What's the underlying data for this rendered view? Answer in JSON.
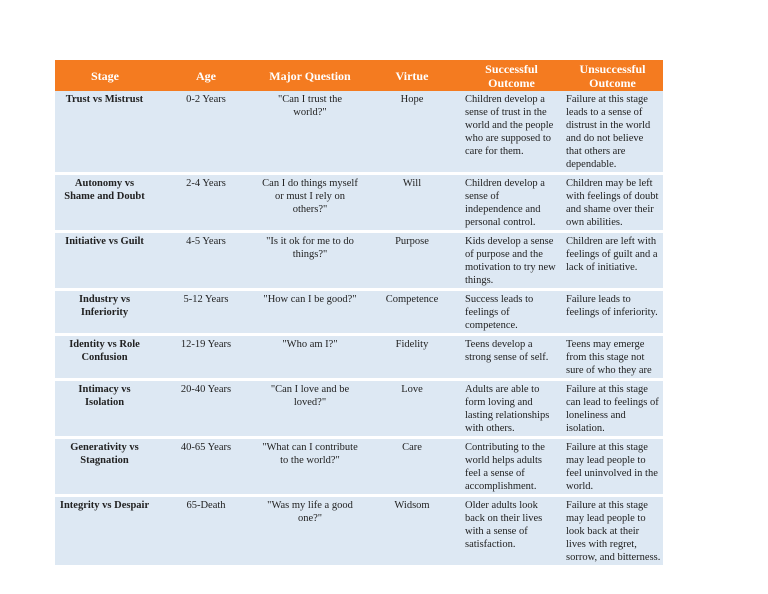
{
  "headers": [
    "Stage",
    "Age",
    "Major Question",
    "Virtue",
    "Successful Outcome",
    "Unsuccessful Outcome"
  ],
  "rows": [
    {
      "stage": "Trust vs Mistrust",
      "age": "0-2 Years",
      "question": "\"Can I trust the world?\"",
      "virtue": "Hope",
      "success": "Children develop a sense of trust in the world and the people who are supposed to care for them.",
      "fail": "Failure at this stage leads to a sense of distrust in the world and do not believe that others are dependable."
    },
    {
      "stage": "Autonomy vs Shame and Doubt",
      "age": "2-4 Years",
      "question": "Can I do things myself or must I rely on others?\"",
      "virtue": "Will",
      "success": "Children develop a sense of independence and personal control.",
      "fail": "Children may be left with feelings of doubt and shame over their own abilities."
    },
    {
      "stage": "Initiative vs Guilt",
      "age": "4-5 Years",
      "question": "\"Is it ok for me to do things?\"",
      "virtue": "Purpose",
      "success": "Kids develop a sense of purpose and the motivation to try new things.",
      "fail": "Children are left with feelings of guilt and a lack of initiative."
    },
    {
      "stage": "Industry vs Inferiority",
      "age": "5-12 Years",
      "question": "\"How can I be good?\"",
      "virtue": "Competence",
      "success": "Success leads to feelings of competence.",
      "fail": "Failure leads to feelings of inferiority."
    },
    {
      "stage": "Identity vs Role Confusion",
      "age": "12-19 Years",
      "question": "\"Who am I?\"",
      "virtue": "Fidelity",
      "success": "Teens develop a strong sense of self.",
      "fail": "Teens may emerge from this stage not sure of who they are"
    },
    {
      "stage": "Intimacy vs Isolation",
      "age": "20-40 Years",
      "question": "\"Can I love and be loved?\"",
      "virtue": "Love",
      "success": "Adults are able to form loving and lasting relationships with others.",
      "fail": "Failure at this stage can lead to feelings of loneliness and isolation."
    },
    {
      "stage": "Generativity vs Stagnation",
      "age": "40-65 Years",
      "question": "\"What can I contribute to the world?\"",
      "virtue": "Care",
      "success": "Contributing to the world helps adults feel a sense of accomplishment.",
      "fail": "Failure at this stage may lead people to feel uninvolved in the world."
    },
    {
      "stage": "Integrity vs Despair",
      "age": "65-Death",
      "question": "\"Was my life a good one?\"",
      "virtue": "Widsom",
      "success": "Older adults look back on their lives with a sense of satisfaction.",
      "fail": "Failure at this stage may lead people to look back at their lives with regret, sorrow, and bitterness."
    }
  ],
  "colors": {
    "header_bg": "#f47b20",
    "row_bg": "#dde8f3"
  }
}
